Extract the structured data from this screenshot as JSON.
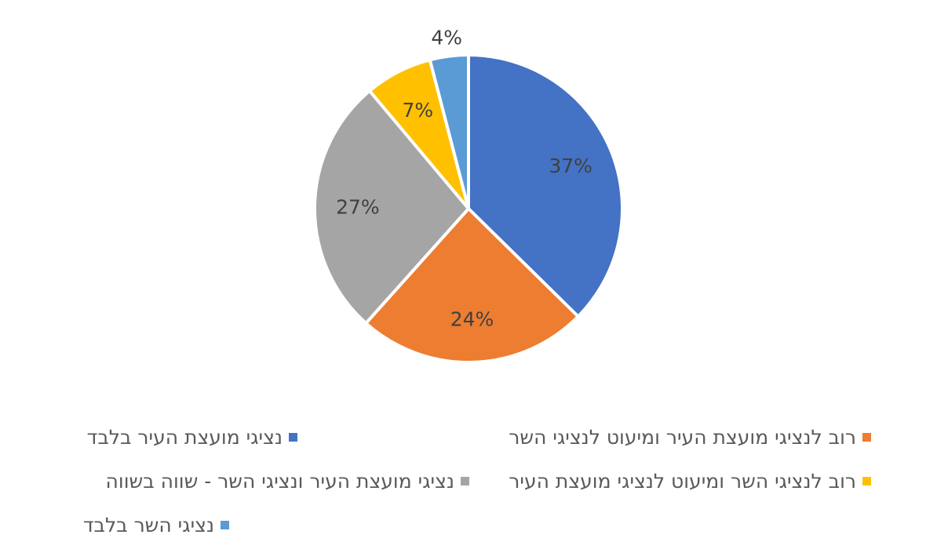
{
  "chart_data": {
    "type": "pie",
    "title": "",
    "slices": [
      {
        "label": "נציגי מועצת העיר בלבד",
        "value": 37,
        "display": "37%",
        "color": "#4472C4"
      },
      {
        "label": "רוב לנציגי מועצת העיר ומיעוט לנציגי השר",
        "value": 24,
        "display": "24%",
        "color": "#ED7D31"
      },
      {
        "label": "נציגי מועצת העיר ונציגי השר - שווה בשווה",
        "value": 27,
        "display": "27%",
        "color": "#A5A5A5"
      },
      {
        "label": "רוב לנציגי השר ומיעוט לנציגי מועצת העיר",
        "value": 7,
        "display": "7%",
        "color": "#FFC000"
      },
      {
        "label": "נציגי השר בלבד",
        "value": 4,
        "display": "4%",
        "color": "#5B9BD5"
      }
    ],
    "legend_position": "bottom"
  }
}
